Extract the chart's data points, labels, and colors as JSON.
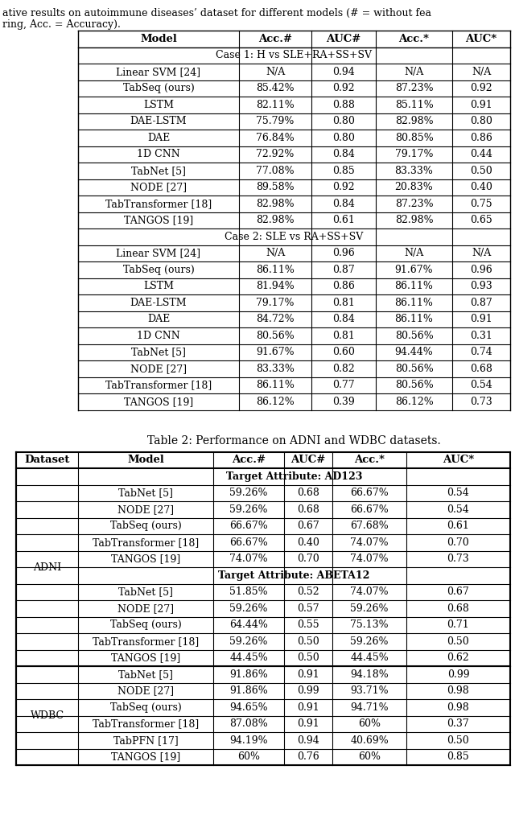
{
  "top_text_line1": "ative results on autoimmune diseases’ dataset for different models (# = without fea",
  "top_text_line2": "ring, Acc. = Accuracy).",
  "table1": {
    "header": [
      "Model",
      "Acc.#",
      "AUC#",
      "Acc.*",
      "AUC*"
    ],
    "case1_label": "Case 1: H vs SLE+RA+SS+SV",
    "case1_rows": [
      [
        "Linear SVM [24]",
        "N/A",
        "0.94",
        "N/A",
        "N/A"
      ],
      [
        "TabSeq (ours)",
        "85.42%",
        "0.92",
        "87.23%",
        "0.92"
      ],
      [
        "LSTM",
        "82.11%",
        "0.88",
        "85.11%",
        "0.91"
      ],
      [
        "DAE-LSTM",
        "75.79%",
        "0.80",
        "82.98%",
        "0.80"
      ],
      [
        "DAE",
        "76.84%",
        "0.80",
        "80.85%",
        "0.86"
      ],
      [
        "1D CNN",
        "72.92%",
        "0.84",
        "79.17%",
        "0.44"
      ],
      [
        "TabNet [5]",
        "77.08%",
        "0.85",
        "83.33%",
        "0.50"
      ],
      [
        "NODE [27]",
        "89.58%",
        "0.92",
        "20.83%",
        "0.40"
      ],
      [
        "TabTransformer [18]",
        "82.98%",
        "0.84",
        "87.23%",
        "0.75"
      ],
      [
        "TANGOS [19]",
        "82.98%",
        "0.61",
        "82.98%",
        "0.65"
      ]
    ],
    "case2_label": "Case 2: SLE vs RA+SS+SV",
    "case2_rows": [
      [
        "Linear SVM [24]",
        "N/A",
        "0.96",
        "N/A",
        "N/A"
      ],
      [
        "TabSeq (ours)",
        "86.11%",
        "0.87",
        "91.67%",
        "0.96"
      ],
      [
        "LSTM",
        "81.94%",
        "0.86",
        "86.11%",
        "0.93"
      ],
      [
        "DAE-LSTM",
        "79.17%",
        "0.81",
        "86.11%",
        "0.87"
      ],
      [
        "DAE",
        "84.72%",
        "0.84",
        "86.11%",
        "0.91"
      ],
      [
        "1D CNN",
        "80.56%",
        "0.81",
        "80.56%",
        "0.31"
      ],
      [
        "TabNet [5]",
        "91.67%",
        "0.60",
        "94.44%",
        "0.74"
      ],
      [
        "NODE [27]",
        "83.33%",
        "0.82",
        "80.56%",
        "0.68"
      ],
      [
        "TabTransformer [18]",
        "86.11%",
        "0.77",
        "80.56%",
        "0.54"
      ],
      [
        "TANGOS [19]",
        "86.12%",
        "0.39",
        "86.12%",
        "0.73"
      ]
    ]
  },
  "table2": {
    "title": "Table 2: Performance on ADNI and WDBC datasets.",
    "header": [
      "Dataset",
      "Model",
      "Acc.#",
      "AUC#",
      "Acc.*",
      "AUC*"
    ],
    "adni_attr1_label": "Target Attribute: AD123",
    "adni_attr1_rows": [
      [
        "TabNet [5]",
        "59.26%",
        "0.68",
        "66.67%",
        "0.54"
      ],
      [
        "NODE [27]",
        "59.26%",
        "0.68",
        "66.67%",
        "0.54"
      ],
      [
        "TabSeq (ours)",
        "66.67%",
        "0.67",
        "67.68%",
        "0.61"
      ],
      [
        "TabTransformer [18]",
        "66.67%",
        "0.40",
        "74.07%",
        "0.70"
      ],
      [
        "TANGOS [19]",
        "74.07%",
        "0.70",
        "74.07%",
        "0.73"
      ]
    ],
    "adni_attr2_label": "Target Attribute: ABETA12",
    "adni_attr2_rows": [
      [
        "TabNet [5]",
        "51.85%",
        "0.52",
        "74.07%",
        "0.67"
      ],
      [
        "NODE [27]",
        "59.26%",
        "0.57",
        "59.26%",
        "0.68"
      ],
      [
        "TabSeq (ours)",
        "64.44%",
        "0.55",
        "75.13%",
        "0.71"
      ],
      [
        "TabTransformer [18]",
        "59.26%",
        "0.50",
        "59.26%",
        "0.50"
      ],
      [
        "TANGOS [19]",
        "44.45%",
        "0.50",
        "44.45%",
        "0.62"
      ]
    ],
    "wdbc_rows": [
      [
        "TabNet [5]",
        "91.86%",
        "0.91",
        "94.18%",
        "0.99"
      ],
      [
        "NODE [27]",
        "91.86%",
        "0.99",
        "93.71%",
        "0.98"
      ],
      [
        "TabSeq (ours)",
        "94.65%",
        "0.91",
        "94.71%",
        "0.98"
      ],
      [
        "TabTransformer [18]",
        "87.08%",
        "0.91",
        "60%",
        "0.37"
      ],
      [
        "TabPFN [17]",
        "94.19%",
        "0.94",
        "40.69%",
        "0.50"
      ],
      [
        "TANGOS [19]",
        "60%",
        "0.76",
        "60%",
        "0.85"
      ]
    ]
  },
  "font_size": 9.0,
  "header_font_size": 9.5,
  "title_font_size": 10.0,
  "font_family": "DejaVu Serif"
}
